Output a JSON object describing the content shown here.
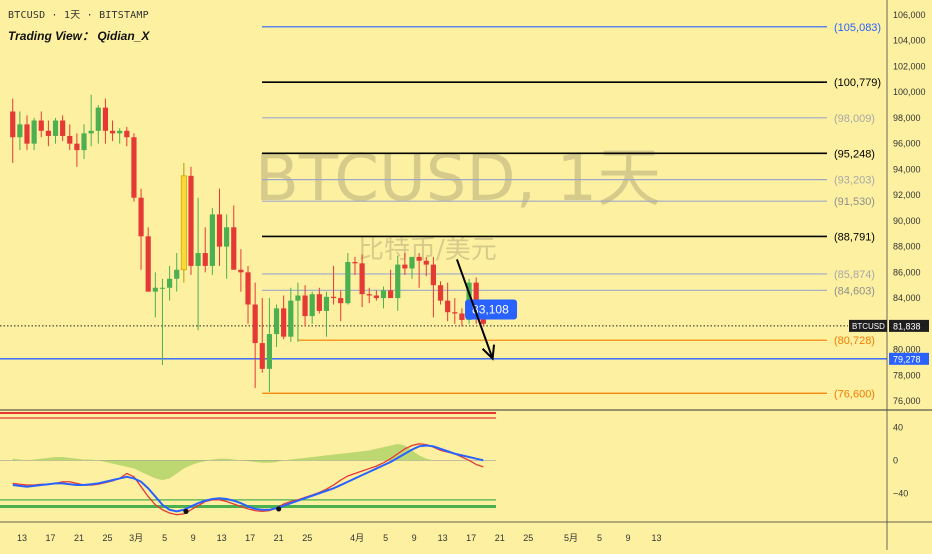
{
  "header": {
    "symbol_line": "BTCUSD · 1天 · BITSTAMP",
    "author": "Trading View： Qidian_X"
  },
  "watermark": {
    "main": "BTCUSD, 1天",
    "sub": "比特币/美元"
  },
  "colors": {
    "background": "#FDF1A1",
    "up": "#4CAF50",
    "down": "#E53935",
    "highlight_candle": "#F9D93A",
    "blue_level": "#2962FF",
    "orange_level": "#F57C00",
    "black_level": "#000000",
    "gray_level": "#9DA8C8",
    "macd_line": "#2962FF",
    "signal_line": "#E53935",
    "histogram": "#8BC34A"
  },
  "chart_data": {
    "type": "candlestick",
    "symbol": "BTCUSD",
    "timeframe": "1天",
    "exchange": "BITSTAMP",
    "y_ticks": [
      106000,
      104000,
      102000,
      100000,
      98000,
      96000,
      94000,
      92000,
      90000,
      88000,
      86000,
      84000,
      82000,
      80000,
      78000,
      76000
    ],
    "y_tick_labels": [
      "106,000",
      "104,000",
      "102,000",
      "100,000",
      "98,000",
      "96,000",
      "94,000",
      "92,000",
      "90,000",
      "88,000",
      "86,000",
      "84,000",
      "82,000",
      "80,000",
      "78,000",
      "76,000"
    ],
    "x_ticks": [
      {
        "label": "13",
        "day": 0
      },
      {
        "label": "17",
        "day": 4
      },
      {
        "label": "21",
        "day": 8
      },
      {
        "label": "25",
        "day": 12
      },
      {
        "label": "3月",
        "day": 16
      },
      {
        "label": "5",
        "day": 20
      },
      {
        "label": "9",
        "day": 24
      },
      {
        "label": "13",
        "day": 28
      },
      {
        "label": "17",
        "day": 32
      },
      {
        "label": "21",
        "day": 36
      },
      {
        "label": "25",
        "day": 40
      },
      {
        "label": "4月",
        "day": 47
      },
      {
        "label": "5",
        "day": 51
      },
      {
        "label": "9",
        "day": 55
      },
      {
        "label": "13",
        "day": 59
      },
      {
        "label": "17",
        "day": 63
      },
      {
        "label": "21",
        "day": 67
      },
      {
        "label": "25",
        "day": 71
      },
      {
        "label": "5月",
        "day": 77
      },
      {
        "label": "5",
        "day": 81
      },
      {
        "label": "9",
        "day": 85
      },
      {
        "label": "13",
        "day": 89
      }
    ],
    "candles": [
      {
        "o": 98500,
        "h": 99500,
        "l": 94500,
        "c": 96500
      },
      {
        "o": 96500,
        "h": 98500,
        "l": 95500,
        "c": 97500
      },
      {
        "o": 97500,
        "h": 98200,
        "l": 95500,
        "c": 96000
      },
      {
        "o": 96000,
        "h": 98000,
        "l": 95500,
        "c": 97800
      },
      {
        "o": 97800,
        "h": 98500,
        "l": 96500,
        "c": 97000
      },
      {
        "o": 97000,
        "h": 97800,
        "l": 95800,
        "c": 96600
      },
      {
        "o": 96600,
        "h": 98000,
        "l": 96000,
        "c": 97800
      },
      {
        "o": 97800,
        "h": 98200,
        "l": 96200,
        "c": 96600
      },
      {
        "o": 96600,
        "h": 97500,
        "l": 95500,
        "c": 96000
      },
      {
        "o": 96000,
        "h": 96800,
        "l": 94200,
        "c": 95500
      },
      {
        "o": 95500,
        "h": 97500,
        "l": 94800,
        "c": 96800
      },
      {
        "o": 96800,
        "h": 99800,
        "l": 95800,
        "c": 97000
      },
      {
        "o": 97000,
        "h": 99000,
        "l": 96000,
        "c": 98800
      },
      {
        "o": 98800,
        "h": 99500,
        "l": 96000,
        "c": 97000
      },
      {
        "o": 97000,
        "h": 97800,
        "l": 96200,
        "c": 96800
      },
      {
        "o": 96800,
        "h": 97200,
        "l": 96000,
        "c": 97000
      },
      {
        "o": 97000,
        "h": 97300,
        "l": 95800,
        "c": 96500
      },
      {
        "o": 96500,
        "h": 96800,
        "l": 91500,
        "c": 91800
      },
      {
        "o": 91800,
        "h": 92500,
        "l": 86200,
        "c": 88800
      },
      {
        "o": 88800,
        "h": 89500,
        "l": 84500,
        "c": 84500
      },
      {
        "o": 84500,
        "h": 86000,
        "l": 82500,
        "c": 84800
      },
      {
        "o": 84800,
        "h": 85500,
        "l": 78800,
        "c": 84800
      },
      {
        "o": 84800,
        "h": 86500,
        "l": 83800,
        "c": 85500
      },
      {
        "o": 85500,
        "h": 87500,
        "l": 84500,
        "c": 86200
      },
      {
        "o": 86200,
        "h": 94500,
        "l": 85200,
        "c": 93500,
        "highlight": true
      },
      {
        "o": 93500,
        "h": 94200,
        "l": 85800,
        "c": 86500
      },
      {
        "o": 86500,
        "h": 91800,
        "l": 81500,
        "c": 87500
      },
      {
        "o": 87500,
        "h": 89500,
        "l": 86000,
        "c": 86500
      },
      {
        "o": 86500,
        "h": 91000,
        "l": 85800,
        "c": 90500
      },
      {
        "o": 90500,
        "h": 92500,
        "l": 86500,
        "c": 88000
      },
      {
        "o": 88000,
        "h": 90500,
        "l": 85500,
        "c": 89500
      },
      {
        "o": 89500,
        "h": 91200,
        "l": 86300,
        "c": 86200
      },
      {
        "o": 86200,
        "h": 87800,
        "l": 84500,
        "c": 86000
      },
      {
        "o": 86000,
        "h": 86500,
        "l": 82000,
        "c": 83500
      },
      {
        "o": 83500,
        "h": 85200,
        "l": 77000,
        "c": 80500
      },
      {
        "o": 80500,
        "h": 84000,
        "l": 78200,
        "c": 78500
      },
      {
        "o": 78500,
        "h": 84000,
        "l": 76700,
        "c": 81200
      },
      {
        "o": 81200,
        "h": 83500,
        "l": 80200,
        "c": 83200
      },
      {
        "o": 83200,
        "h": 84200,
        "l": 80800,
        "c": 81000
      },
      {
        "o": 81000,
        "h": 84800,
        "l": 80600,
        "c": 83800
      },
      {
        "o": 83800,
        "h": 85200,
        "l": 80600,
        "c": 84200
      },
      {
        "o": 84200,
        "h": 85000,
        "l": 81800,
        "c": 82600
      },
      {
        "o": 82600,
        "h": 84500,
        "l": 82000,
        "c": 84300
      },
      {
        "o": 84300,
        "h": 84800,
        "l": 82800,
        "c": 83000
      },
      {
        "o": 83000,
        "h": 84500,
        "l": 81000,
        "c": 84100
      },
      {
        "o": 84100,
        "h": 86500,
        "l": 83500,
        "c": 84000
      },
      {
        "o": 84000,
        "h": 84600,
        "l": 82200,
        "c": 83600
      },
      {
        "o": 83600,
        "h": 87500,
        "l": 83500,
        "c": 86800
      },
      {
        "o": 86800,
        "h": 87200,
        "l": 85800,
        "c": 86700
      },
      {
        "o": 86700,
        "h": 87400,
        "l": 83300,
        "c": 84300
      },
      {
        "o": 84300,
        "h": 84800,
        "l": 83600,
        "c": 84200
      },
      {
        "o": 84200,
        "h": 84600,
        "l": 83800,
        "c": 84000
      },
      {
        "o": 84000,
        "h": 84900,
        "l": 83200,
        "c": 84600
      },
      {
        "o": 84600,
        "h": 86200,
        "l": 84000,
        "c": 84000
      },
      {
        "o": 84000,
        "h": 87300,
        "l": 83000,
        "c": 86600
      },
      {
        "o": 86600,
        "h": 87500,
        "l": 85800,
        "c": 86300
      },
      {
        "o": 86300,
        "h": 87000,
        "l": 85500,
        "c": 87200
      },
      {
        "o": 87200,
        "h": 87500,
        "l": 84800,
        "c": 86900
      },
      {
        "o": 86900,
        "h": 87200,
        "l": 85700,
        "c": 86600
      },
      {
        "o": 86600,
        "h": 87200,
        "l": 82500,
        "c": 85000
      },
      {
        "o": 85000,
        "h": 85300,
        "l": 83500,
        "c": 83800
      },
      {
        "o": 83800,
        "h": 85200,
        "l": 82200,
        "c": 82900
      },
      {
        "o": 82900,
        "h": 84000,
        "l": 82000,
        "c": 82800
      },
      {
        "o": 82800,
        "h": 83200,
        "l": 81800,
        "c": 82300
      },
      {
        "o": 82300,
        "h": 85500,
        "l": 82000,
        "c": 85200
      },
      {
        "o": 85200,
        "h": 85600,
        "l": 82000,
        "c": 82600
      },
      {
        "o": 82600,
        "h": 82800,
        "l": 81800,
        "c": 82000
      }
    ],
    "levels": [
      {
        "label": "(105,083)",
        "value": 105083,
        "color": "#2962FF",
        "width": 1.2,
        "text_color": "#2962FF"
      },
      {
        "label": "(100,779)",
        "value": 100779,
        "color": "#000000",
        "width": 1.6,
        "text_color": "#000000"
      },
      {
        "label": "(98,009)",
        "value": 98009,
        "color": "#9DA8C8",
        "width": 1.2,
        "text_color": "#A7A7A7"
      },
      {
        "label": "(95,248)",
        "value": 95248,
        "color": "#000000",
        "width": 1.6,
        "text_color": "#000000"
      },
      {
        "label": "(93,203)",
        "value": 93203,
        "color": "#9DA8C8",
        "width": 1.2,
        "text_color": "#A7A7A7"
      },
      {
        "label": "(91,530)",
        "value": 91530,
        "color": "#9DA8C8",
        "width": 1.2,
        "text_color": "#8E8E8E"
      },
      {
        "label": "(88,791)",
        "value": 88791,
        "color": "#000000",
        "width": 1.6,
        "text_color": "#000000"
      },
      {
        "label": "(85,874)",
        "value": 85874,
        "color": "#9DA8C8",
        "width": 1.2,
        "text_color": "#A7A7A7"
      },
      {
        "label": "(84,603)",
        "value": 84603,
        "color": "#9DA8C8",
        "width": 1.2,
        "text_color": "#8E8E8E"
      },
      {
        "label": "(80,728)",
        "value": 80728,
        "color": "#F57C00",
        "width": 1.2,
        "text_color": "#F57C00"
      },
      {
        "label": "(76,600)",
        "value": 76600,
        "color": "#F57C00",
        "width": 1.2,
        "text_color": "#F57C00"
      }
    ],
    "horizontal_line": {
      "value": 79278,
      "label": "79,278",
      "color": "#2962FF"
    },
    "current_price": {
      "value": 81838,
      "symbol": "BTCUSD",
      "label": "81,838"
    },
    "callout": {
      "label": "83,108",
      "value": 83108
    },
    "arrow": {
      "from_day": 61,
      "from_value": 87000,
      "to_day": 66,
      "to_value": 79300
    },
    "macd": {
      "y_ticks": [
        40,
        0,
        -40
      ],
      "y_tick_labels": [
        "40",
        "0",
        "−40"
      ],
      "ylim": [
        -70,
        55
      ],
      "macd_line": [
        -30,
        -31,
        -32,
        -31,
        -30,
        -29,
        -28,
        -28,
        -29,
        -30,
        -30,
        -29,
        -28,
        -26,
        -24,
        -22,
        -20,
        -22,
        -26,
        -34,
        -44,
        -54,
        -60,
        -62,
        -60,
        -56,
        -52,
        -49,
        -47,
        -46,
        -47,
        -49,
        -52,
        -56,
        -59,
        -60,
        -60,
        -58,
        -55,
        -52,
        -49,
        -46,
        -43,
        -40,
        -37,
        -34,
        -30,
        -26,
        -22,
        -18,
        -14,
        -10,
        -6,
        -2,
        3,
        8,
        13,
        17,
        18,
        17,
        14,
        11,
        8,
        6,
        4,
        2,
        0
      ],
      "signal_line": [
        -28,
        -29,
        -30,
        -30,
        -29,
        -29,
        -28,
        -26,
        -26,
        -28,
        -30,
        -30,
        -29,
        -27,
        -25,
        -22,
        -16,
        -20,
        -32,
        -44,
        -54,
        -60,
        -64,
        -66,
        -65,
        -60,
        -55,
        -50,
        -48,
        -48,
        -50,
        -53,
        -56,
        -59,
        -61,
        -62,
        -61,
        -58,
        -53,
        -50,
        -48,
        -45,
        -42,
        -39,
        -35,
        -30,
        -24,
        -19,
        -16,
        -13,
        -10,
        -7,
        -3,
        2,
        8,
        14,
        18,
        20,
        19,
        16,
        12,
        10,
        8,
        4,
        0,
        -5,
        -8
      ],
      "histogram": [
        2,
        1,
        0,
        1,
        2,
        3,
        4,
        4,
        3,
        2,
        1,
        1,
        0,
        -2,
        -4,
        -6,
        -8,
        -10,
        -14,
        -18,
        -22,
        -24,
        -22,
        -16,
        -10,
        -6,
        -3,
        -1,
        1,
        2,
        2,
        1,
        0,
        -1,
        -2,
        -3,
        -3,
        -2,
        0,
        1,
        2,
        3,
        4,
        5,
        6,
        7,
        8,
        9,
        10,
        11,
        12,
        14,
        16,
        18,
        20,
        18,
        12,
        6,
        2,
        0,
        0,
        0,
        0,
        0,
        0,
        0,
        0
      ],
      "levels": [
        {
          "value": -56,
          "color": "#4CAF50",
          "width": 3
        },
        {
          "value": -48,
          "color": "#4CAF50",
          "width": 1.2
        }
      ],
      "dots": [
        {
          "day": 23,
          "value": -62
        },
        {
          "day": 36,
          "value": -59
        }
      ]
    }
  }
}
